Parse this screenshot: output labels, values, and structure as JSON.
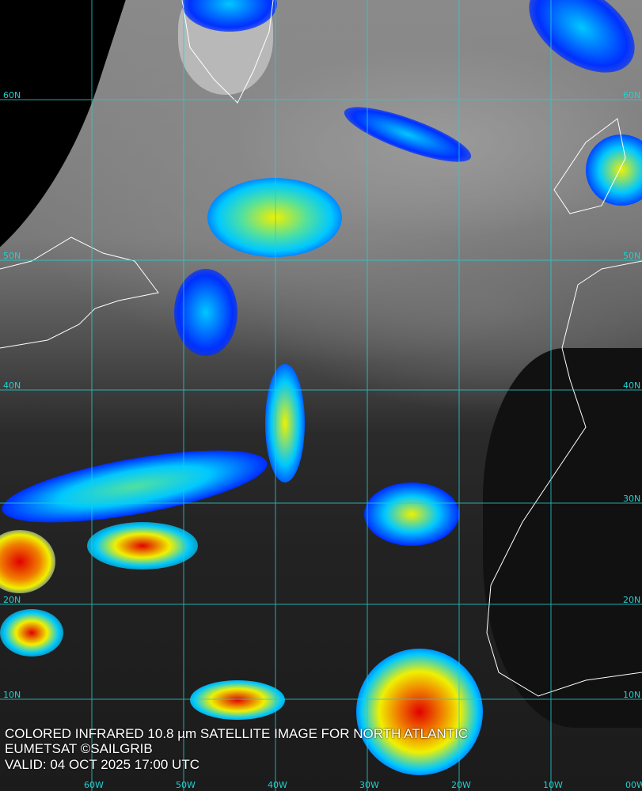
{
  "caption": {
    "line1": "COLORED INFRARED 10.8 µm SATELLITE IMAGE FOR NORTH ATLANTIC",
    "line2": "EUMETSAT ©SAILGRIB",
    "line3": "VALID:  04 OCT 2025 17:00 UTC"
  },
  "grid": {
    "lat_labels": [
      "60N",
      "50N",
      "40N",
      "30N",
      "20N",
      "10N"
    ],
    "lon_labels": [
      "60W",
      "50W",
      "40W",
      "30W",
      "20W",
      "10W",
      "00W"
    ],
    "grid_color": "#22d0d0",
    "coast_color": "#ffffff"
  },
  "colors": {
    "cold_blue": "#0030ff",
    "cyan": "#00d0ff",
    "yellow": "#f0f000",
    "red": "#e00000"
  }
}
